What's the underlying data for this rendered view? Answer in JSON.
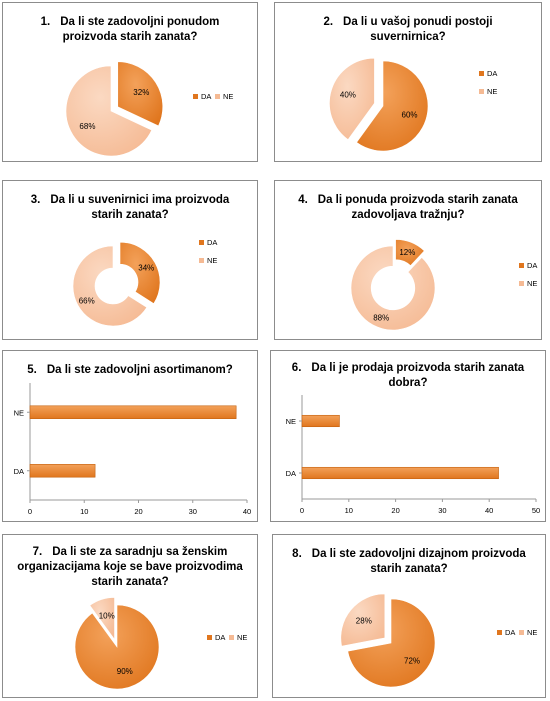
{
  "colors": {
    "da": "#E0761E",
    "ne": "#F5BA94",
    "da_light": "#F3A15A",
    "ne_light": "#FBD9C2",
    "border": "#8c8c8c",
    "grid": "#d9d9d9"
  },
  "chart_data": [
    {
      "type": "pie",
      "number": "1.",
      "title": "Da li ste zadovoljni ponudom\nproizvoda starih zanata?",
      "categories": [
        "DA",
        "NE"
      ],
      "values": [
        32,
        68
      ],
      "value_labels": [
        "32%",
        "68%"
      ],
      "legend": [
        "DA",
        "NE"
      ],
      "legend_position": "right"
    },
    {
      "type": "pie",
      "number": "2.",
      "title": "Da li u vašoj ponudi postoji\nsuvernirnica?",
      "categories": [
        "DA",
        "NE"
      ],
      "values": [
        60,
        40
      ],
      "value_labels": [
        "60%",
        "40%"
      ],
      "legend": [
        "DA",
        "NE"
      ],
      "legend_position": "right"
    },
    {
      "type": "doughnut",
      "number": "3.",
      "title": "Da li u suvenirnici ima proizvoda\nstarih zanata?",
      "categories": [
        "DA",
        "NE"
      ],
      "values": [
        34,
        66
      ],
      "value_labels": [
        "34%",
        "66%"
      ],
      "legend": [
        "DA",
        "NE"
      ],
      "legend_position": "right"
    },
    {
      "type": "doughnut",
      "number": "4.",
      "title": "Da li ponuda proizvoda starih zanata\nzadovoljava tražnju?",
      "categories": [
        "DA",
        "NE"
      ],
      "values": [
        12,
        88
      ],
      "value_labels": [
        "12%",
        "88%"
      ],
      "legend": [
        "DA",
        "NE"
      ],
      "legend_position": "right"
    },
    {
      "type": "bar",
      "number": "5.",
      "title": "Da li ste zadovoljni asortimanom?",
      "categories": [
        "NE",
        "DA"
      ],
      "values": [
        38,
        12
      ],
      "xlim": [
        0,
        40
      ],
      "xticks": [
        0,
        10,
        20,
        30,
        40
      ],
      "grid": false
    },
    {
      "type": "bar",
      "number": "6.",
      "title": "Da li je prodaja proizvoda starih zanata\ndobra?",
      "categories": [
        "NE",
        "DA"
      ],
      "values": [
        8,
        42
      ],
      "xlim": [
        0,
        50
      ],
      "xticks": [
        0,
        10,
        20,
        30,
        40,
        50
      ],
      "grid": false
    },
    {
      "type": "pie",
      "number": "7.",
      "title": "Da li ste za saradnju sa ženskim\norganizacijama koje se bave proizvodima\nstarih zanata?",
      "categories": [
        "DA",
        "NE"
      ],
      "values": [
        90,
        10
      ],
      "value_labels": [
        "90%",
        "10%"
      ],
      "legend": [
        "DA",
        "NE"
      ],
      "legend_position": "right"
    },
    {
      "type": "pie",
      "number": "8.",
      "title": "Da li ste zadovoljni dizajnom proizvoda\nstarih zanata?",
      "categories": [
        "DA",
        "NE"
      ],
      "values": [
        72,
        28
      ],
      "value_labels": [
        "72%",
        "28%"
      ],
      "legend": [
        "DA",
        "NE"
      ],
      "legend_position": "right"
    }
  ]
}
